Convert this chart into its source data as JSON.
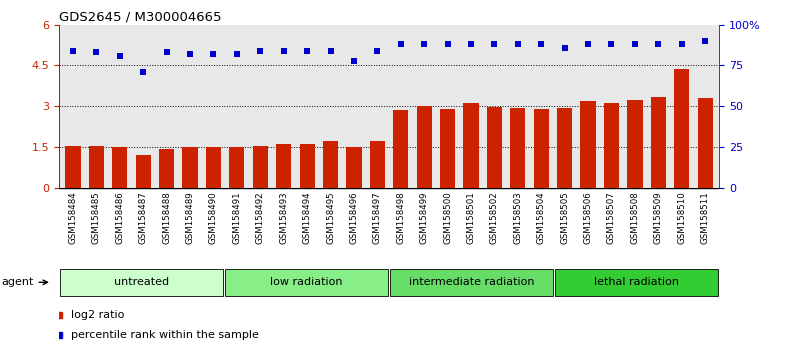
{
  "title": "GDS2645 / M300004665",
  "samples": [
    "GSM158484",
    "GSM158485",
    "GSM158486",
    "GSM158487",
    "GSM158488",
    "GSM158489",
    "GSM158490",
    "GSM158491",
    "GSM158492",
    "GSM158493",
    "GSM158494",
    "GSM158495",
    "GSM158496",
    "GSM158497",
    "GSM158498",
    "GSM158499",
    "GSM158500",
    "GSM158501",
    "GSM158502",
    "GSM158503",
    "GSM158504",
    "GSM158505",
    "GSM158506",
    "GSM158507",
    "GSM158508",
    "GSM158509",
    "GSM158510",
    "GSM158511"
  ],
  "log2_ratio": [
    1.55,
    1.52,
    1.48,
    1.22,
    1.43,
    1.5,
    1.5,
    1.5,
    1.55,
    1.6,
    1.62,
    1.72,
    1.5,
    1.72,
    2.85,
    3.0,
    2.88,
    3.12,
    2.98,
    2.95,
    2.88,
    2.93,
    3.18,
    3.12,
    3.22,
    3.35,
    4.38,
    3.32
  ],
  "percentile_rank_pct": [
    84,
    83,
    81,
    71,
    83,
    82,
    82,
    82,
    84,
    84,
    84,
    84,
    78,
    84,
    88,
    88,
    88,
    88,
    88,
    88,
    88,
    86,
    88,
    88,
    88,
    88,
    88,
    90
  ],
  "bar_color": "#cc2200",
  "dot_color": "#0000cc",
  "groups": [
    {
      "label": "untreated",
      "start": 0,
      "end": 7,
      "color": "#ccffcc"
    },
    {
      "label": "low radiation",
      "start": 7,
      "end": 14,
      "color": "#88ee88"
    },
    {
      "label": "intermediate radiation",
      "start": 14,
      "end": 21,
      "color": "#66dd66"
    },
    {
      "label": "lethal radiation",
      "start": 21,
      "end": 28,
      "color": "#33cc33"
    }
  ],
  "ylim_left": [
    0,
    6
  ],
  "yticks_left": [
    0,
    1.5,
    3.0,
    4.5,
    6.0
  ],
  "yticklabels_left": [
    "0",
    "1.5",
    "3",
    "4.5",
    "6"
  ],
  "yticks_right_pct": [
    0,
    25,
    50,
    75,
    100
  ],
  "yticklabels_right": [
    "0",
    "25",
    "50",
    "75",
    "100%"
  ],
  "hlines": [
    1.5,
    3.0,
    4.5
  ],
  "legend_bar_label": "log2 ratio",
  "legend_dot_label": "percentile rank within the sample",
  "agent_label": "agent",
  "background_color": "#ffffff",
  "plot_bg_color": "#e8e8e8",
  "tick_label_bg": "#d0d0d0"
}
